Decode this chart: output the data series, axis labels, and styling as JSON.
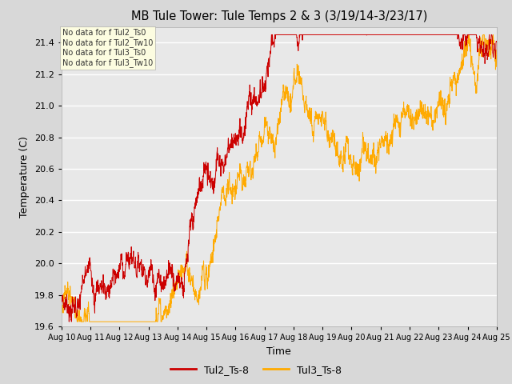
{
  "title": "MB Tule Tower: Tule Temps 2 & 3 (3/19/14-3/23/17)",
  "xlabel": "Time",
  "ylabel": "Temperature (C)",
  "ylim": [
    19.6,
    21.5
  ],
  "yticks": [
    19.6,
    19.8,
    20.0,
    20.2,
    20.4,
    20.6,
    20.8,
    21.0,
    21.2,
    21.4
  ],
  "xtick_labels": [
    "Aug 10",
    "Aug 11",
    "Aug 12",
    "Aug 13",
    "Aug 14",
    "Aug 15",
    "Aug 16",
    "Aug 17",
    "Aug 18",
    "Aug 19",
    "Aug 20",
    "Aug 21",
    "Aug 22",
    "Aug 23",
    "Aug 24",
    "Aug 25"
  ],
  "color_tul2": "#cc0000",
  "color_tul3": "#ffaa00",
  "legend_labels": [
    "Tul2_Ts-8",
    "Tul3_Ts-8"
  ],
  "background_color": "#d8d8d8",
  "plot_bg_color": "#e8e8e8",
  "annotation_lines": [
    "No data for f Tul2_Ts0",
    "No data for f Tul2_Tw10",
    "No data for f Tul3_Ts0",
    "No data for f Tul3_Tw10"
  ],
  "num_points": 2000,
  "seed": 7
}
